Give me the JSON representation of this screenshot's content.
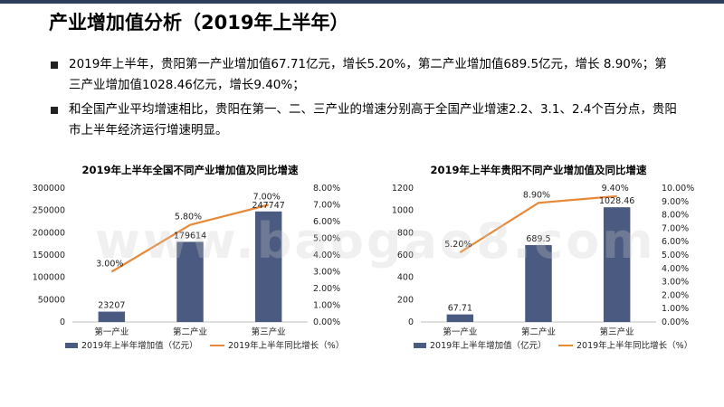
{
  "title": "产业增加值分析（2019年上半年）",
  "bullets": [
    "2019年上半年，贵阳第一产业增加值67.71亿元，增长5.20%，第二产业增加值689.5亿元，增长 8.90%；第三产业增加值1028.46亿元，增长9.40%；",
    "和全国产业平均增速相比，贵阳在第一、二、三产业的增速分别高于全国产业增速2.2、3.1、2.4个百分点，贵阳市上半年经济运行增速明显。"
  ],
  "watermark": "www.baogao8.com",
  "colors": {
    "bar": "#4b5a80",
    "line": "#e8893a",
    "accent": "#2f3d5c"
  },
  "chart_data": [
    {
      "type": "bar",
      "title": "2019年上半年全国不同产业增加值及同比增速",
      "categories": [
        "第一产业",
        "第二产业",
        "第三产业"
      ],
      "series": [
        {
          "name": "2019年上半年增加值（亿元）",
          "kind": "bar",
          "axis": "left",
          "values": [
            23207,
            179614,
            247747
          ],
          "labels": [
            "23207",
            "179614",
            "247747"
          ]
        },
        {
          "name": "2019年上半年同比增长（%）",
          "kind": "line",
          "axis": "right",
          "values": [
            3.0,
            5.8,
            7.0
          ],
          "labels": [
            "3.00%",
            "5.80%",
            "7.00%"
          ]
        }
      ],
      "ylim_left": [
        0,
        300000
      ],
      "yticks_left": [
        "0",
        "50000",
        "100000",
        "150000",
        "200000",
        "250000",
        "300000"
      ],
      "ylim_right": [
        0,
        8.0
      ],
      "yticks_right": [
        "0.00%",
        "1.00%",
        "2.00%",
        "3.00%",
        "4.00%",
        "5.00%",
        "6.00%",
        "7.00%",
        "8.00%"
      ],
      "legend": "bottom",
      "grid": false
    },
    {
      "type": "bar",
      "title": "2019年上半年贵阳不同产业增加值及同比增速",
      "categories": [
        "第一产业",
        "第二产业",
        "第三产业"
      ],
      "series": [
        {
          "name": "2019年上半年增加值（亿元）",
          "kind": "bar",
          "axis": "left",
          "values": [
            67.71,
            689.5,
            1028.46
          ],
          "labels": [
            "67.71",
            "689.5",
            "1028.46"
          ]
        },
        {
          "name": "2019年上半年同比增长（%）",
          "kind": "line",
          "axis": "right",
          "values": [
            5.2,
            8.9,
            9.4
          ],
          "labels": [
            "5.20%",
            "8.90%",
            "9.40%"
          ]
        }
      ],
      "ylim_left": [
        0,
        1200
      ],
      "yticks_left": [
        "0",
        "200",
        "400",
        "600",
        "800",
        "1000",
        "1200"
      ],
      "ylim_right": [
        0,
        10.0
      ],
      "yticks_right": [
        "0.00%",
        "1.00%",
        "2.00%",
        "3.00%",
        "4.00%",
        "5.00%",
        "6.00%",
        "7.00%",
        "8.00%",
        "9.00%",
        "10.00%"
      ],
      "legend": "bottom",
      "grid": false
    }
  ]
}
